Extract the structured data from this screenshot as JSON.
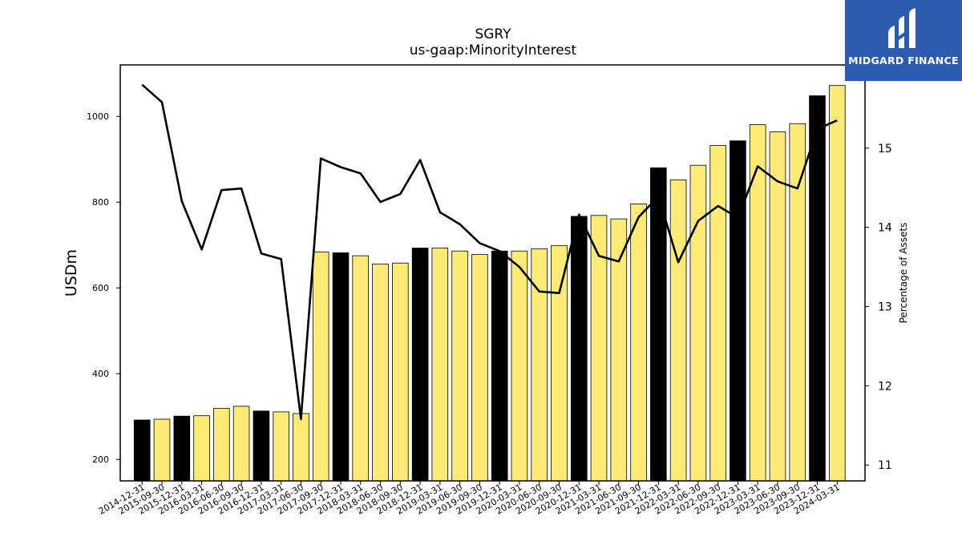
{
  "chart_data": {
    "type": "bar",
    "title": "SGRY",
    "subtitle": "us-gaap:MinorityInterest",
    "ylabel": "USDm",
    "y2label": "Percentage of Assets",
    "ylim": [
      150,
      1120
    ],
    "y2lim": [
      10.8,
      16.05
    ],
    "yticks": [
      200,
      400,
      600,
      800,
      1000
    ],
    "y2ticks": [
      11,
      12,
      13,
      14,
      15
    ],
    "categories": [
      "2014-12-31",
      "2015-09-30",
      "2015-12-31",
      "2016-03-31",
      "2016-06-30",
      "2016-09-30",
      "2016-12-31",
      "2017-03-31",
      "2017-06-30",
      "2017-09-30",
      "2017-12-31",
      "2018-03-31",
      "2018-06-30",
      "2018-09-30",
      "2018-12-31",
      "2019-03-31",
      "2019-06-30",
      "2019-09-30",
      "2019-12-31",
      "2020-03-31",
      "2020-06-30",
      "2020-09-30",
      "2020-12-31",
      "2021-03-31",
      "2021-06-30",
      "2021-09-30",
      "2021-12-31",
      "2022-03-31",
      "2022-06-30",
      "2022-09-30",
      "2022-12-31",
      "2023-03-31",
      "2023-06-30",
      "2023-09-30",
      "2023-12-31",
      "2024-03-31"
    ],
    "series": [
      {
        "kind": "bar",
        "values": [
          292,
          294,
          301,
          302,
          319,
          324,
          313,
          311,
          307,
          684,
          682,
          675,
          656,
          658,
          693,
          693,
          686,
          678,
          686,
          686,
          691,
          699,
          767,
          769,
          761,
          796,
          880,
          852,
          886,
          932,
          943,
          981,
          964,
          983,
          1048,
          1072
        ],
        "highlight": [
          true,
          false,
          true,
          false,
          false,
          false,
          true,
          false,
          false,
          false,
          true,
          false,
          false,
          false,
          true,
          false,
          false,
          false,
          true,
          false,
          false,
          false,
          true,
          false,
          false,
          false,
          true,
          false,
          false,
          false,
          true,
          false,
          false,
          false,
          true,
          false
        ]
      },
      {
        "kind": "line",
        "axis": "right",
        "values": [
          15.8,
          15.58,
          14.33,
          13.72,
          14.47,
          14.49,
          13.67,
          13.6,
          11.58,
          14.87,
          14.76,
          14.68,
          14.32,
          14.42,
          14.85,
          14.19,
          14.04,
          13.8,
          13.7,
          13.5,
          13.19,
          13.17,
          14.16,
          13.64,
          13.57,
          14.13,
          14.39,
          13.56,
          14.08,
          14.27,
          14.12,
          14.77,
          14.58,
          14.49,
          15.24,
          15.35
        ]
      }
    ],
    "colors": {
      "bar": "#feeb75",
      "bar_highlight": "#000000",
      "line": "#000000"
    },
    "grid": false
  },
  "logo": {
    "text": "MIDGARD FINANCE",
    "background": "#2d5bb0"
  }
}
